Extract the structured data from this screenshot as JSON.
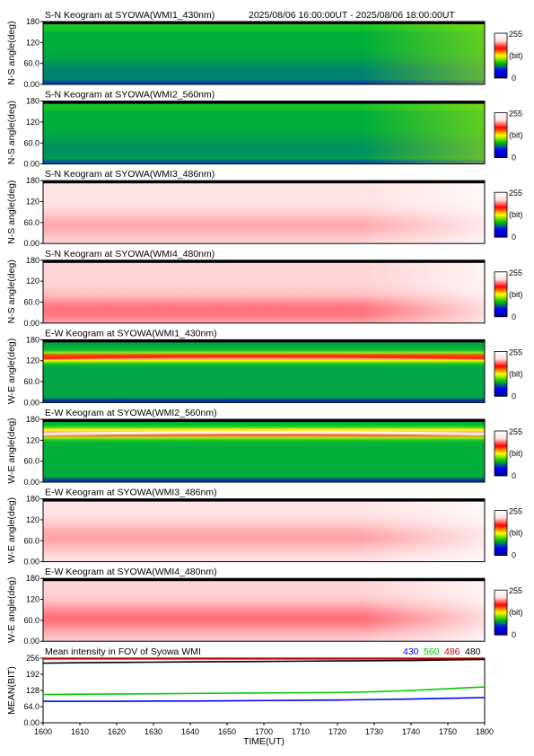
{
  "header": {
    "time_range": "2025/08/06 16:00:00UT - 2025/08/06 18:00:00UT"
  },
  "colorbar": {
    "max_label": "255",
    "unit_label": "(bit)",
    "min_label": "0",
    "stops": [
      "#000090",
      "#0000ff",
      "#00c000",
      "#ffff00",
      "#ff0000",
      "#ffe0e0",
      "#ffffff"
    ]
  },
  "keograms": [
    {
      "title": "S-N Keogram at SYOWA(WMI1_430nm)",
      "ylabel": "N-S angle(deg)",
      "yticks": [
        "180",
        "120",
        "60.0",
        "0.00"
      ],
      "scheme": "green",
      "band_center": 30,
      "band_strength": 0.3,
      "base": 0.42,
      "dusk_fade": true
    },
    {
      "title": "S-N Keogram at SYOWA(WMI2_560nm)",
      "ylabel": "N-S angle(deg)",
      "yticks": [
        "180",
        "120",
        "60.0",
        "0.00"
      ],
      "scheme": "green",
      "band_center": 40,
      "band_strength": 0.2,
      "base": 0.42,
      "dusk_fade": true
    },
    {
      "title": "S-N Keogram at SYOWA(WMI3_486nm)",
      "ylabel": "N-S angle(deg)",
      "yticks": [
        "180",
        "120",
        "60.0",
        "0.00"
      ],
      "scheme": "pink",
      "band_center": 50,
      "band_strength": 0.35,
      "base": 0.1,
      "dusk_fade": true
    },
    {
      "title": "S-N Keogram at SYOWA(WMI4_480nm)",
      "ylabel": "N-S angle(deg)",
      "yticks": [
        "180",
        "120",
        "60.0",
        "0.00"
      ],
      "scheme": "pink",
      "band_center": 35,
      "band_strength": 0.6,
      "base": 0.2,
      "dusk_fade": true
    },
    {
      "title": "E-W Keogram at SYOWA(WMI1_430nm)",
      "ylabel": "W-E angle(deg)",
      "yticks": [
        "180",
        "120",
        "60.0",
        "0.00"
      ],
      "scheme": "green_arc",
      "band_center": 130,
      "band_strength": 1.0,
      "base": 0.4,
      "dusk_fade": false
    },
    {
      "title": "E-W Keogram at SYOWA(WMI2_560nm)",
      "ylabel": "W-E angle(deg)",
      "yticks": [
        "180",
        "120",
        "60.0",
        "0.00"
      ],
      "scheme": "green_arc",
      "band_center": 140,
      "band_strength": 1.0,
      "base": 0.42,
      "dusk_fade": false
    },
    {
      "title": "E-W Keogram at SYOWA(WMI3_486nm)",
      "ylabel": "W-E angle(deg)",
      "yticks": [
        "180",
        "120",
        "60.0",
        "0.00"
      ],
      "scheme": "pink",
      "band_center": 70,
      "band_strength": 0.4,
      "base": 0.1,
      "dusk_fade": true
    },
    {
      "title": "E-W Keogram at SYOWA(WMI4_480nm)",
      "ylabel": "W-E angle(deg)",
      "yticks": [
        "180",
        "120",
        "60.0",
        "0.00"
      ],
      "scheme": "pink",
      "band_center": 65,
      "band_strength": 0.6,
      "base": 0.2,
      "dusk_fade": true
    }
  ],
  "mean_panel": {
    "title": "Mean intensity in FOV of Syowa WMI",
    "ylabel": "MEAN(BIT)",
    "yticks": [
      "256",
      "192",
      "128",
      "64.0",
      "0.00"
    ],
    "legend": [
      {
        "label": "430",
        "color": "#0000ff"
      },
      {
        "label": "560",
        "color": "#00cc00"
      },
      {
        "label": "486",
        "color": "#cc0000"
      },
      {
        "label": "480",
        "color": "#000000"
      }
    ]
  },
  "xaxis": {
    "ticks": [
      "1600",
      "1610",
      "1620",
      "1630",
      "1640",
      "1650",
      "1700",
      "1710",
      "1720",
      "1730",
      "1740",
      "1750",
      "1800"
    ],
    "label": "TIME(UT)"
  },
  "chart_data": {
    "type": "line",
    "title": "Mean intensity in FOV of Syowa WMI",
    "xlabel": "TIME(UT)",
    "ylabel": "MEAN(BIT)",
    "ylim": [
      0,
      256
    ],
    "x": [
      1600,
      1610,
      1620,
      1630,
      1640,
      1650,
      1700,
      1710,
      1720,
      1730,
      1740,
      1750,
      1800
    ],
    "series": [
      {
        "name": "430",
        "color": "#0000ff",
        "values": [
          85,
          85,
          85,
          86,
          86,
          87,
          88,
          89,
          90,
          92,
          94,
          97,
          100
        ]
      },
      {
        "name": "560",
        "color": "#00cc00",
        "values": [
          112,
          113,
          114,
          115,
          116,
          117,
          118,
          119,
          120,
          123,
          128,
          135,
          142
        ]
      },
      {
        "name": "486",
        "color": "#cc0000",
        "values": [
          253,
          253,
          253,
          253,
          253,
          253,
          253,
          253,
          253,
          253,
          253,
          253,
          253
        ]
      },
      {
        "name": "480",
        "color": "#000000",
        "values": [
          236,
          238,
          239,
          240,
          241,
          242,
          243,
          244,
          245,
          246,
          247,
          249,
          251
        ]
      }
    ]
  }
}
